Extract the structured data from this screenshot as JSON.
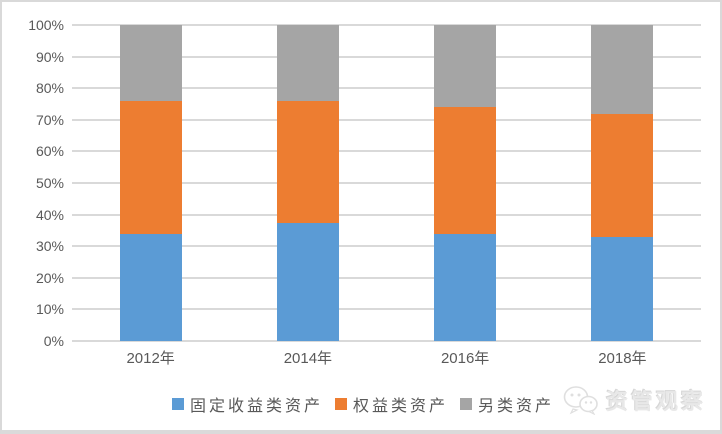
{
  "chart_data": {
    "type": "bar",
    "stacked": true,
    "percent": true,
    "title": "",
    "xlabel": "",
    "ylabel": "",
    "categories": [
      "2012年",
      "2014年",
      "2016年",
      "2018年"
    ],
    "series": [
      {
        "name": "固定收益类资产",
        "color": "#5B9BD5",
        "values": [
          34,
          37.5,
          34,
          33
        ]
      },
      {
        "name": "权益类资产",
        "color": "#ED7D31",
        "values": [
          42,
          38.5,
          40,
          39
        ]
      },
      {
        "name": "另类资产",
        "color": "#A5A5A5",
        "values": [
          24,
          24,
          26,
          28
        ]
      }
    ],
    "ylim": [
      0,
      100
    ],
    "ytick_step": 10,
    "ytick_suffix": "%",
    "grid": true,
    "legend_position": "bottom"
  },
  "watermark": {
    "label": "资管观察",
    "icon": "wechat-icon"
  },
  "colors": {
    "axis_text": "#595959",
    "gridline": "#D9D9D9",
    "frame_border": "#D9D9D9",
    "background": "#FFFFFF",
    "watermark_text": "#E6E6E6"
  }
}
